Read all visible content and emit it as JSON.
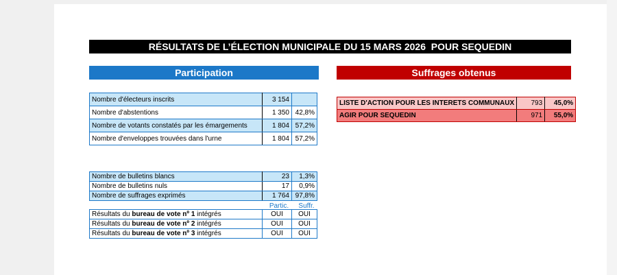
{
  "title": "RÉSULTATS DE L’ÉLECTION MUNICIPALE DU 15 MARS 2026  POUR SEQUEDIN",
  "participation": {
    "heading": "Participation",
    "rows": [
      {
        "label": "Nombre d'électeurs inscrits",
        "value": "3 154",
        "pct": ""
      },
      {
        "label": "Nombre d'abstentions",
        "value": "1 350",
        "pct": "42,8%"
      },
      {
        "label": "Nombre de votants constatés par les émargements",
        "value": "1 804",
        "pct": "57,2%"
      },
      {
        "label": "Nombre d'enveloppes trouvées dans l'urne",
        "value": "1 804",
        "pct": "57,2%"
      }
    ]
  },
  "bulletins": {
    "rows": [
      {
        "label": "Nombre de bulletins blancs",
        "value": "23",
        "pct": "1,3%"
      },
      {
        "label": "Nombre de bulletins nuls",
        "value": "17",
        "pct": "0,9%"
      },
      {
        "label": "Nombre de suffrages exprimés",
        "value": "1 764",
        "pct": "97,8%"
      }
    ]
  },
  "bureaux": {
    "col_partic": "Partic.",
    "col_suffr": "Suffr.",
    "prefix": "Résultats du ",
    "suffix": " intégrés",
    "rows": [
      {
        "bureau": "bureau de vote nº 1",
        "partic": "OUI",
        "suffr": "OUI"
      },
      {
        "bureau": "bureau de vote nº 2",
        "partic": "OUI",
        "suffr": "OUI"
      },
      {
        "bureau": "bureau de vote nº 3",
        "partic": "OUI",
        "suffr": "OUI"
      }
    ]
  },
  "suffrages": {
    "heading": "Suffrages obtenus",
    "lists": [
      {
        "name": "LISTE D'ACTION POUR LES INTERETS COMMUNAUX",
        "votes": "793",
        "pct": "45,0%"
      },
      {
        "name": "AGIR POUR SEQUEDIN",
        "votes": "971",
        "pct": "55,0%"
      }
    ]
  },
  "colors": {
    "participation_accent": "#1c78c8",
    "suffrages_accent": "#c00000",
    "title_bar": "#000000"
  }
}
